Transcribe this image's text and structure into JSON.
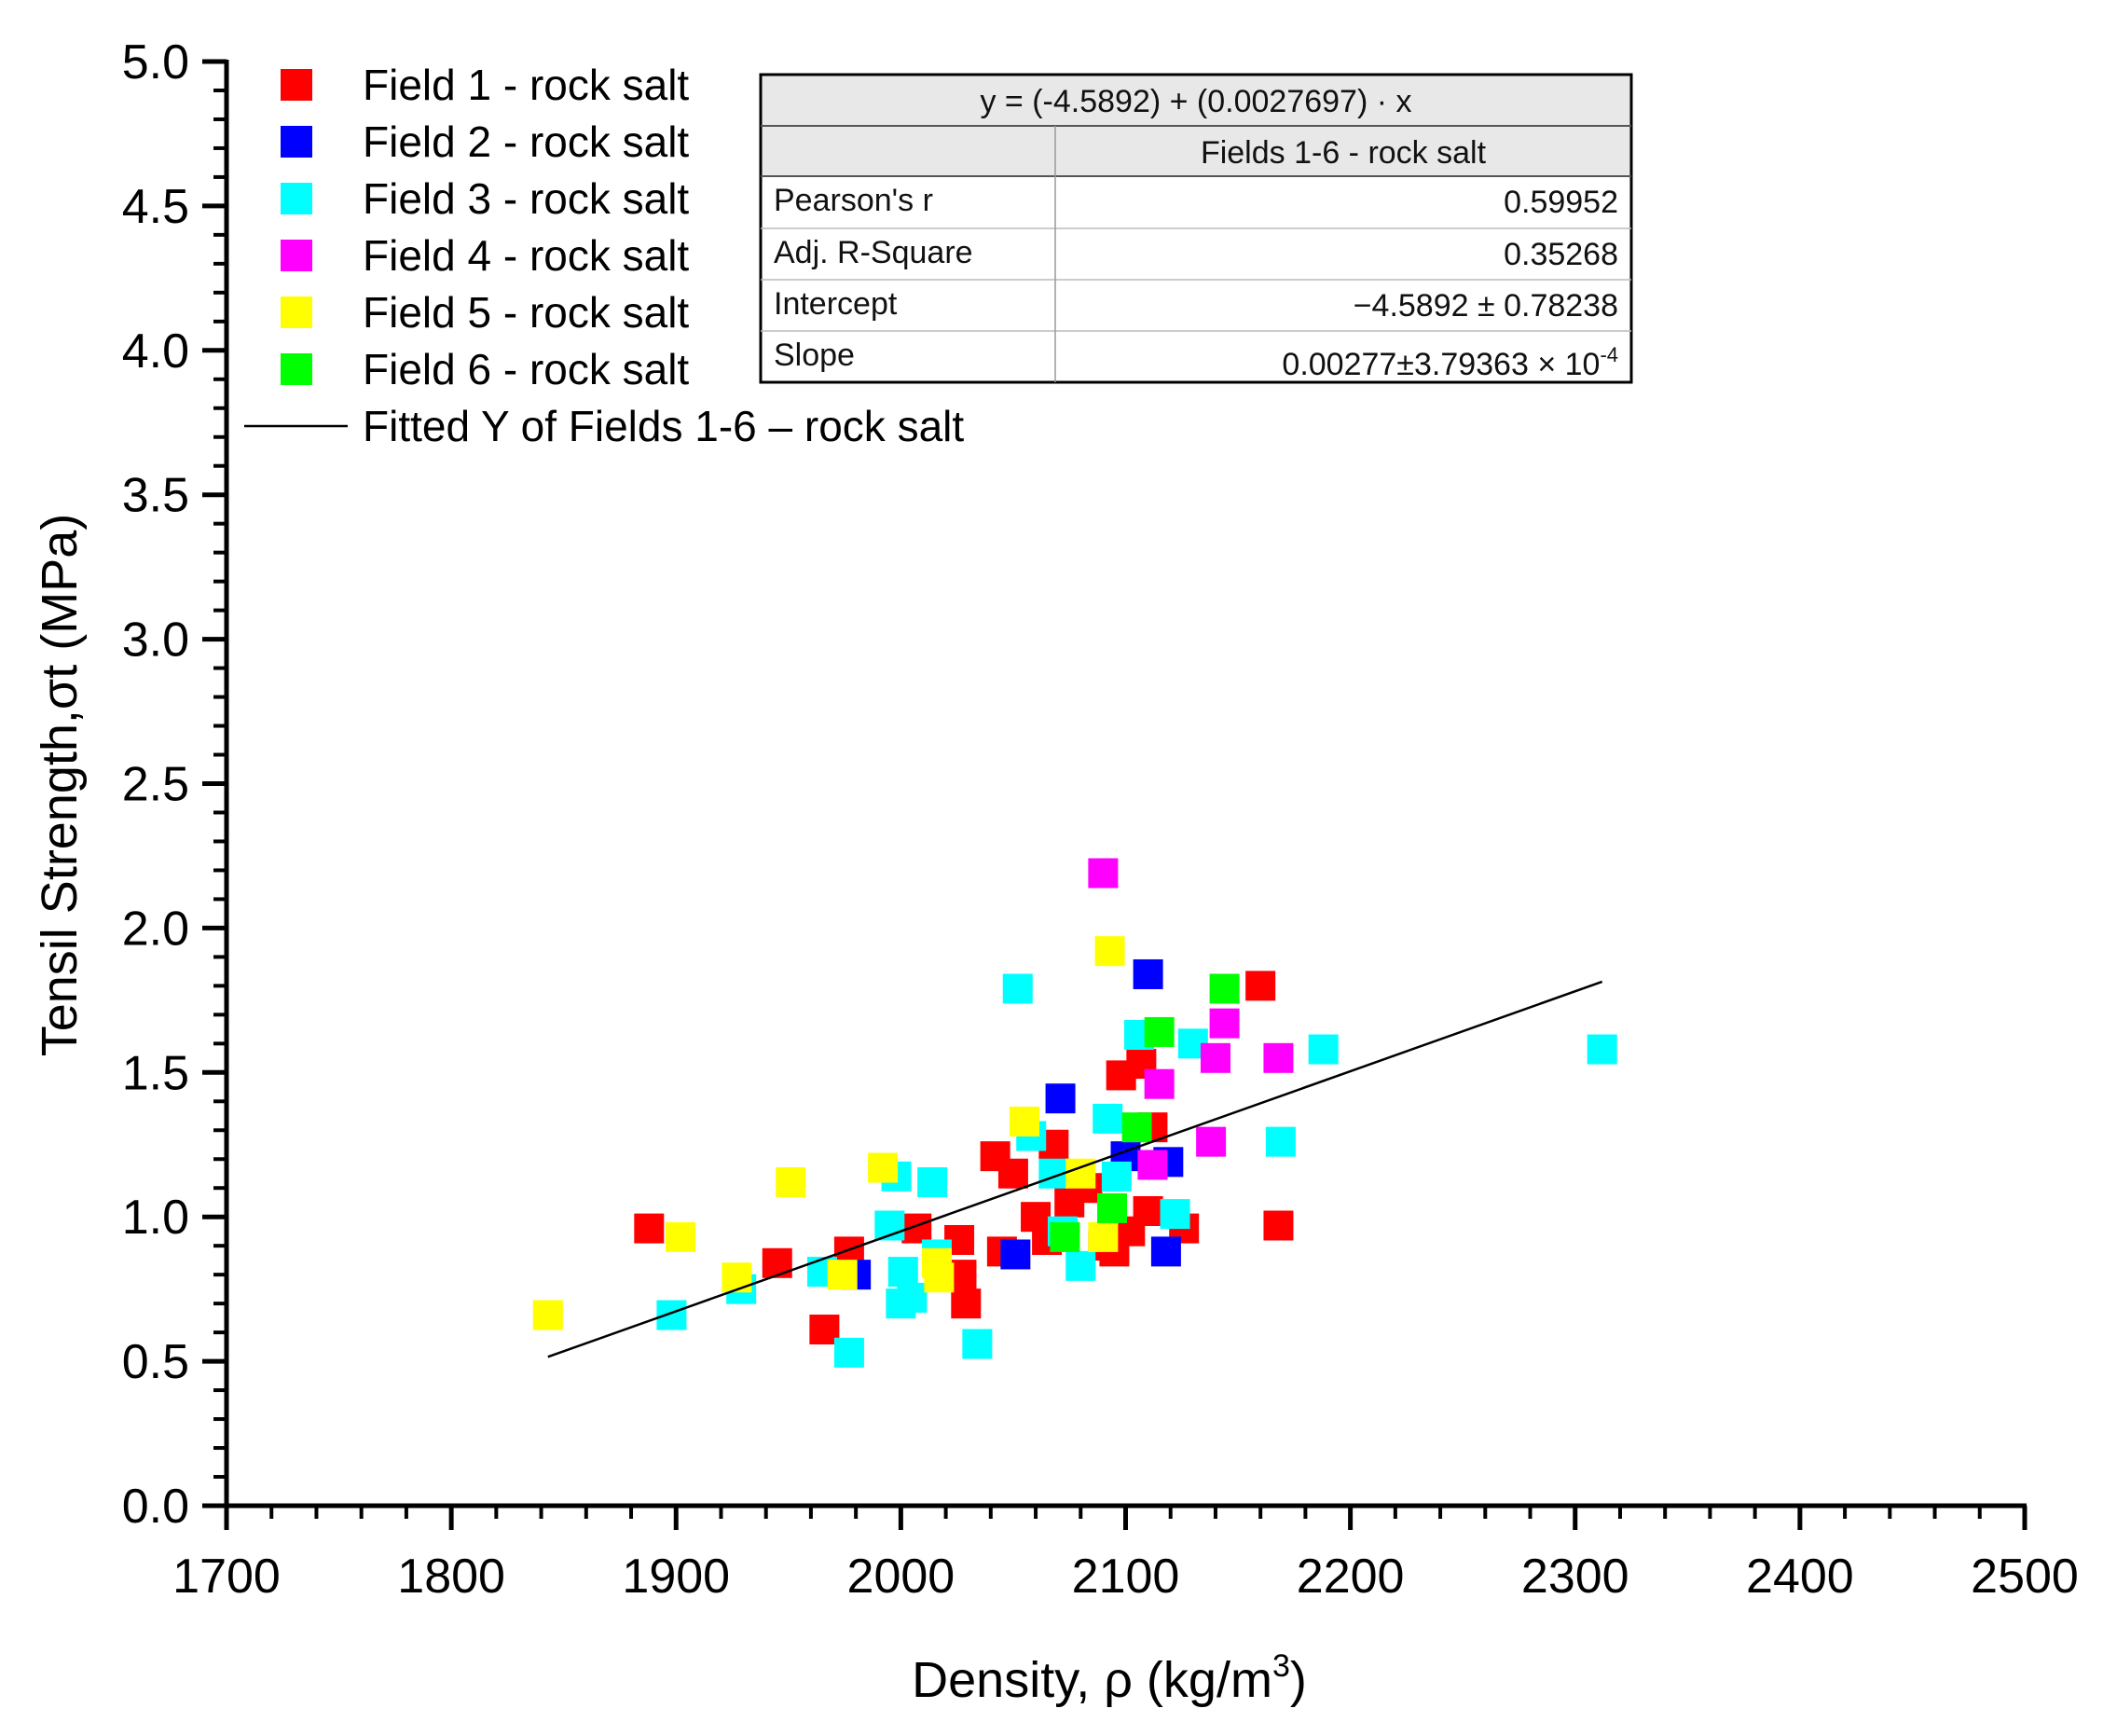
{
  "chart_data": {
    "type": "scatter",
    "xlabel": "Density, ρ (kg/m",
    "xlabel_sup": "3",
    "xlabel_end": ")",
    "ylabel": "Tensil Strength,σt (MPa)",
    "xlim": [
      1700,
      2500
    ],
    "ylim": [
      0,
      5.0
    ],
    "x_ticks": [
      1700,
      1800,
      1900,
      2000,
      2100,
      2200,
      2300,
      2400,
      2500
    ],
    "x_tick_labels": [
      "1700",
      "1800",
      "1900",
      "2000",
      "2100",
      "2200",
      "2300",
      "2400",
      "2500"
    ],
    "y_ticks": [
      0,
      0.5,
      1.0,
      1.5,
      2.0,
      2.5,
      3.0,
      3.5,
      4.0,
      4.5,
      5.0
    ],
    "y_tick_labels": [
      "0.0",
      "0.5",
      "1.0",
      "1.5",
      "2.0",
      "2.5",
      "3.0",
      "3.5",
      "4.0",
      "4.5",
      "5.0"
    ],
    "series": [
      {
        "name": "Field 1 - rock salt",
        "color": "#ff0000",
        "points": [
          [
            1888,
            0.96
          ],
          [
            1945,
            0.84
          ],
          [
            1966,
            0.61
          ],
          [
            1977,
            0.88
          ],
          [
            2007,
            0.96
          ],
          [
            2026,
            0.92
          ],
          [
            2027,
            0.8
          ],
          [
            2029,
            0.7
          ],
          [
            2042,
            1.21
          ],
          [
            2045,
            0.88
          ],
          [
            2050,
            1.15
          ],
          [
            2060,
            1.0
          ],
          [
            2065,
            0.92
          ],
          [
            2068,
            1.25
          ],
          [
            2075,
            1.05
          ],
          [
            2083,
            1.1
          ],
          [
            2090,
            0.9
          ],
          [
            2095,
            0.88
          ],
          [
            2098,
            1.49
          ],
          [
            2102,
            0.95
          ],
          [
            2107,
            1.53
          ],
          [
            2110,
            1.02
          ],
          [
            2112,
            1.31
          ],
          [
            2126,
            0.96
          ],
          [
            2160,
            1.8
          ],
          [
            2168,
            0.97
          ]
        ]
      },
      {
        "name": "Field 2 - rock salt",
        "color": "#0000ff",
        "points": [
          [
            1980,
            0.8
          ],
          [
            2051,
            0.87
          ],
          [
            2071,
            1.41
          ],
          [
            2100,
            1.21
          ],
          [
            2110,
            1.84
          ],
          [
            2119,
            1.19
          ],
          [
            2118,
            0.88
          ]
        ]
      },
      {
        "name": "Field 3 - rock salt",
        "color": "#00ffff",
        "points": [
          [
            1898,
            0.66
          ],
          [
            1929,
            0.75
          ],
          [
            1965,
            0.81
          ],
          [
            1977,
            0.53
          ],
          [
            1995,
            0.97
          ],
          [
            1998,
            1.14
          ],
          [
            2000,
            0.7
          ],
          [
            2001,
            0.81
          ],
          [
            2005,
            0.72
          ],
          [
            2014,
            1.12
          ],
          [
            2016,
            0.87
          ],
          [
            2034,
            0.56
          ],
          [
            2052,
            1.79
          ],
          [
            2058,
            1.28
          ],
          [
            2068,
            1.15
          ],
          [
            2072,
            0.95
          ],
          [
            2080,
            0.83
          ],
          [
            2092,
            1.34
          ],
          [
            2096,
            1.14
          ],
          [
            2106,
            1.63
          ],
          [
            2122,
            1.01
          ],
          [
            2130,
            1.6
          ],
          [
            2169,
            1.26
          ],
          [
            2188,
            1.58
          ],
          [
            2312,
            1.58
          ]
        ]
      },
      {
        "name": "Field 4 - rock salt",
        "color": "#ff00ff",
        "points": [
          [
            2090,
            2.19
          ],
          [
            2112,
            1.18
          ],
          [
            2115,
            1.46
          ],
          [
            2138,
            1.26
          ],
          [
            2140,
            1.55
          ],
          [
            2144,
            1.67
          ],
          [
            2168,
            1.55
          ]
        ]
      },
      {
        "name": "Field 5 - rock salt",
        "color": "#ffff00",
        "points": [
          [
            1843,
            0.66
          ],
          [
            1902,
            0.93
          ],
          [
            1927,
            0.79
          ],
          [
            1951,
            1.12
          ],
          [
            1974,
            0.8
          ],
          [
            1992,
            1.17
          ],
          [
            2016,
            0.84
          ],
          [
            2017,
            0.79
          ],
          [
            2055,
            1.33
          ],
          [
            2080,
            1.15
          ],
          [
            2090,
            0.93
          ],
          [
            2093,
            1.92
          ]
        ]
      },
      {
        "name": "Field 6 - rock salt",
        "color": "#00ff00",
        "points": [
          [
            2073,
            0.93
          ],
          [
            2094,
            1.03
          ],
          [
            2105,
            1.31
          ],
          [
            2115,
            1.64
          ],
          [
            2144,
            1.79
          ]
        ]
      }
    ],
    "fit_line": {
      "name": "Fitted Y of Fields 1-6 – rock salt",
      "color": "#000000",
      "intercept": -4.5892,
      "slope": 0.0027697,
      "x_range": [
        1843,
        2312
      ]
    },
    "stats_table": {
      "equation": "y = (-4.5892) + (0.0027697) · x",
      "column_header": "Fields 1-6 - rock salt",
      "rows": [
        {
          "label": "Pearson's r",
          "value": "0.59952"
        },
        {
          "label": "Adj. R-Square",
          "value": "0.35268"
        },
        {
          "label": "Intercept",
          "value": "−4.5892 ± 0.78238"
        },
        {
          "label": "Slope",
          "value": "0.00277±3.79363 × 10",
          "sup": "-4"
        }
      ]
    }
  }
}
